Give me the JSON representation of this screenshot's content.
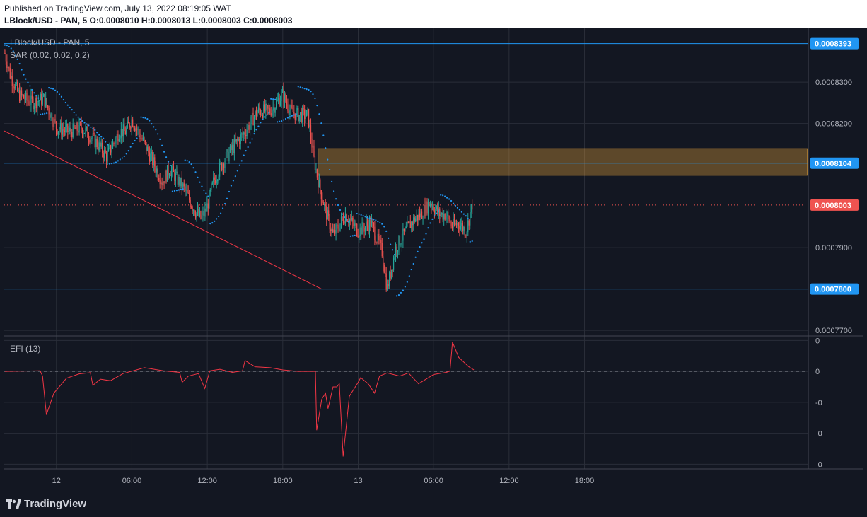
{
  "header": {
    "published": "Published on TradingView.com, July 13, 2022 08:19:05 WAT",
    "symbol_line": "LBlock/USD - PAN, 5",
    "ohlc": {
      "o_label": "O:",
      "o": "0.0008010",
      "h_label": "H:",
      "h": "0.0008013",
      "l_label": "L:",
      "l": "0.0008003",
      "c_label": "C:",
      "c": "0.0008003"
    }
  },
  "footer": {
    "brand": "TradingView"
  },
  "colors": {
    "background": "#131722",
    "up": "#26a69a",
    "down": "#ef5350",
    "sar": "#2196f3",
    "level_line": "#2196f3",
    "trendline": "#f23645",
    "zone_fill": "#e8a43a",
    "efi": "#f23645"
  },
  "chart_data": {
    "type": "candlestick",
    "symbol": "LBlock/USD - PAN, 5",
    "price_panel": {
      "ylim": [
        0.000769,
        0.000843
      ],
      "yticks": [
        "0.0008300",
        "0.0008200",
        "0.0007900",
        "0.0007700"
      ],
      "ytick_values": [
        0.00083,
        0.00082,
        0.00079,
        0.00077
      ],
      "xlim_hours": [
        -4.15,
        59.8
      ],
      "xticks": [
        {
          "label": "12",
          "t": 0
        },
        {
          "label": "06:00",
          "t": 6
        },
        {
          "label": "12:00",
          "t": 12
        },
        {
          "label": "18:00",
          "t": 18
        },
        {
          "label": "13",
          "t": 24
        },
        {
          "label": "06:00",
          "t": 30
        },
        {
          "label": "12:00",
          "t": 36
        },
        {
          "label": "18:00",
          "t": 42
        }
      ],
      "indicator_label": "SAR (0.02, 0.02, 0.2)",
      "path_hours": [
        -4.1,
        -3.7,
        -3.0,
        -2.0,
        -1.0,
        0.0,
        1.0,
        2.0,
        3.0,
        4.0,
        5.0,
        5.5,
        6.0,
        7.0,
        7.8,
        8.4,
        9.0,
        10.0,
        11.0,
        11.5,
        11.9,
        12.5,
        13.3,
        14.0,
        15.0,
        16.0,
        17.0,
        17.5,
        18.0,
        18.6,
        19.3,
        20.0,
        20.5,
        20.9,
        21.4,
        21.7,
        22.0,
        23.0,
        24.0,
        25.0,
        25.9,
        26.3,
        27.0,
        28.0,
        28.5,
        29.0,
        29.7,
        30.5,
        31.0,
        31.5,
        32.0,
        32.6,
        33.1
      ],
      "path_prices": [
        0.000837,
        0.000832,
        0.000827,
        0.000825,
        0.000826,
        0.000819,
        0.000818,
        0.000819,
        0.000816,
        0.000812,
        0.000818,
        0.000818,
        0.000821,
        0.000815,
        0.00081,
        0.000806,
        0.000809,
        0.000805,
        0.000799,
        0.000797,
        0.000799,
        0.000806,
        0.000811,
        0.000814,
        0.000818,
        0.000823,
        0.000823,
        0.000825,
        0.000827,
        0.000823,
        0.000822,
        0.000822,
        0.000811,
        0.000805,
        0.000799,
        0.000796,
        0.000793,
        0.000798,
        0.000794,
        0.000796,
        0.000789,
        0.00078,
        0.00079,
        0.000795,
        0.000797,
        0.000798,
        0.000801,
        0.000798,
        0.000798,
        0.000795,
        0.000796,
        0.000794,
        0.000801
      ],
      "horizontal_levels": [
        {
          "label": "0.0008393",
          "price": 0.0008393
        },
        {
          "label": "0.0008104",
          "price": 0.0008104
        },
        {
          "label": "0.0007800",
          "price": 0.00078
        }
      ],
      "last_price": {
        "label": "0.0008003",
        "price": 0.0008003
      },
      "zone": {
        "t_start": 20.8,
        "t_end": 59.8,
        "price_top": 0.0008139,
        "price_bottom": 0.0008075
      },
      "trendline": {
        "t1": -4.15,
        "p1": 0.0008182,
        "t2": 21.1,
        "p2": 0.00078
      }
    },
    "efi_panel": {
      "label": "EFI (13)",
      "yticks": [
        "0",
        "0",
        "-0",
        "-0",
        "-0"
      ],
      "ytick_values": [
        1.0,
        0.0,
        -1.0,
        -2.0,
        -3.0
      ],
      "ylim": [
        -3.15,
        1.1
      ],
      "baseline": 0,
      "points": [
        [
          -4.1,
          0.0
        ],
        [
          -1.3,
          0.02
        ],
        [
          -1.1,
          -0.15
        ],
        [
          -0.8,
          -1.4
        ],
        [
          -0.2,
          -0.7
        ],
        [
          0.8,
          -0.22
        ],
        [
          1.8,
          -0.08
        ],
        [
          2.7,
          -0.04
        ],
        [
          2.9,
          -0.45
        ],
        [
          3.5,
          -0.25
        ],
        [
          4.3,
          -0.3
        ],
        [
          5.3,
          -0.07
        ],
        [
          7.0,
          0.12
        ],
        [
          8.5,
          0.02
        ],
        [
          9.8,
          -0.03
        ],
        [
          10.0,
          -0.35
        ],
        [
          10.5,
          -0.15
        ],
        [
          11.3,
          -0.07
        ],
        [
          11.8,
          -0.55
        ],
        [
          12.2,
          0.02
        ],
        [
          13.0,
          0.07
        ],
        [
          14.0,
          -0.03
        ],
        [
          14.8,
          0.02
        ],
        [
          15.0,
          0.35
        ],
        [
          15.8,
          0.15
        ],
        [
          17.0,
          0.12
        ],
        [
          18.0,
          0.05
        ],
        [
          19.2,
          0.0
        ],
        [
          20.6,
          0.0
        ],
        [
          20.7,
          -1.9
        ],
        [
          21.1,
          -0.9
        ],
        [
          21.4,
          -0.7
        ],
        [
          21.6,
          -1.2
        ],
        [
          22.0,
          -0.5
        ],
        [
          22.3,
          -0.5
        ],
        [
          22.5,
          -0.4
        ],
        [
          22.8,
          -2.75
        ],
        [
          23.3,
          -0.8
        ],
        [
          24.0,
          -0.35
        ],
        [
          24.2,
          -0.2
        ],
        [
          24.8,
          -0.4
        ],
        [
          25.3,
          -0.7
        ],
        [
          25.7,
          -0.15
        ],
        [
          26.3,
          -0.05
        ],
        [
          27.3,
          -0.15
        ],
        [
          28.0,
          -0.05
        ],
        [
          28.8,
          -0.4
        ],
        [
          30.0,
          -0.1
        ],
        [
          31.0,
          -0.03
        ],
        [
          31.3,
          0.01
        ],
        [
          31.5,
          0.95
        ],
        [
          32.0,
          0.45
        ],
        [
          32.8,
          0.15
        ],
        [
          33.2,
          0.05
        ]
      ]
    }
  }
}
